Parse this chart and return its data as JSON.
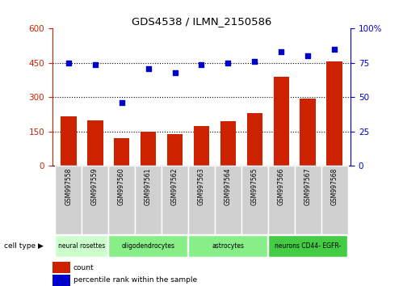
{
  "title": "GDS4538 / ILMN_2150586",
  "samples": [
    "GSM997558",
    "GSM997559",
    "GSM997560",
    "GSM997561",
    "GSM997562",
    "GSM997563",
    "GSM997564",
    "GSM997565",
    "GSM997566",
    "GSM997567",
    "GSM997568"
  ],
  "counts": [
    215,
    200,
    120,
    148,
    138,
    175,
    195,
    230,
    390,
    295,
    455
  ],
  "percentiles": [
    75,
    74,
    46,
    71,
    68,
    74,
    75,
    76,
    83,
    80,
    85
  ],
  "ylim_left": [
    0,
    600
  ],
  "ylim_right": [
    0,
    100
  ],
  "yticks_left": [
    0,
    150,
    300,
    450,
    600
  ],
  "yticks_right": [
    0,
    25,
    50,
    75,
    100
  ],
  "bar_color": "#cc2200",
  "dot_color": "#0000cc",
  "bg_color": "#ffffff",
  "cell_types": [
    {
      "label": "neural rosettes",
      "start": 0,
      "end": 2,
      "color": "#ccffcc"
    },
    {
      "label": "oligodendrocytes",
      "start": 2,
      "end": 5,
      "color": "#88ee88"
    },
    {
      "label": "astrocytes",
      "start": 5,
      "end": 8,
      "color": "#88ee88"
    },
    {
      "label": "neurons CD44- EGFR-",
      "start": 8,
      "end": 11,
      "color": "#44cc44"
    }
  ],
  "tick_bg_color": "#d0d0d0",
  "legend_count_color": "#cc2200",
  "legend_pct_color": "#0000cc"
}
